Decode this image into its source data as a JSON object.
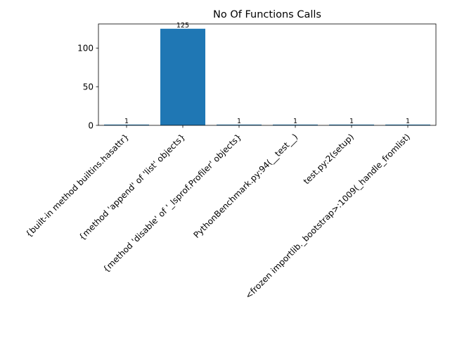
{
  "chart_data": {
    "type": "bar",
    "title": "No Of Functions Calls",
    "xlabel": "",
    "ylabel": "",
    "categories": [
      "{built-in method builtins.hasattr}",
      "{method 'append' of 'list' objects}",
      "{method 'disable' of '_lsprof.Profiler' objects}",
      "PythonBenchmark.py:94(__test__)",
      "test.py:2(setup)",
      "<frozen importlib._bootstrap>:1009(_handle_fromlist)"
    ],
    "values": [
      1,
      125,
      1,
      1,
      1,
      1
    ],
    "data_labels": [
      "1",
      "125",
      "1",
      "1",
      "1",
      "1"
    ],
    "ylim": [
      0,
      131.2
    ],
    "yticks": [
      0,
      50,
      100
    ],
    "ytick_labels": [
      "0",
      "50",
      "100"
    ],
    "bar_color": "#1f77b4",
    "grid": false,
    "legend": "none"
  }
}
